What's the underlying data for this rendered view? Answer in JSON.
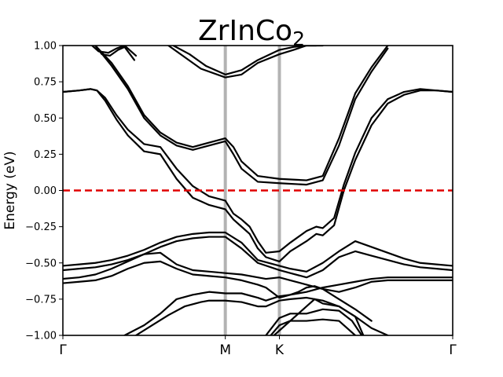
{
  "chart_data": {
    "type": "line",
    "title": {
      "main": "ZrInCo",
      "subscript": "2"
    },
    "xlabel": "",
    "ylabel": "Energy (eV)",
    "ylim": [
      -1.0,
      1.0
    ],
    "y_ticks": [
      -1.0,
      -0.75,
      -0.5,
      -0.25,
      0.0,
      0.25,
      0.5,
      0.75,
      1.0
    ],
    "y_tick_labels": [
      "−1.00",
      "−0.75",
      "−0.50",
      "−0.25",
      "0.00",
      "0.25",
      "0.50",
      "0.75",
      "1.00"
    ],
    "k_path": {
      "labels": [
        "Γ",
        "M",
        "K",
        "Γ"
      ],
      "positions": [
        0.0,
        1.0,
        1.333,
        2.4
      ]
    },
    "fermi_level": {
      "energy": 0.0,
      "color": "#e00000",
      "style": "dashed"
    },
    "colors": {
      "bands": "#000000",
      "k_lines": "#b3b3b3",
      "fermi": "#e00000"
    },
    "grid": false,
    "series": [
      {
        "x": [
          0.18,
          0.22,
          0.28,
          0.33,
          0.38,
          0.45
        ],
        "y": [
          1.0,
          0.96,
          0.95,
          0.98,
          1.0,
          0.93
        ]
      },
      {
        "x": [
          0.2,
          0.24,
          0.29,
          0.34,
          0.38,
          0.44
        ],
        "y": [
          1.0,
          0.94,
          0.93,
          0.97,
          0.99,
          0.9
        ]
      },
      {
        "x": [
          0.68,
          0.78,
          0.88,
          1.0,
          1.1,
          1.2,
          1.333,
          1.42,
          1.5,
          1.56
        ],
        "y": [
          1.0,
          0.94,
          0.86,
          0.8,
          0.83,
          0.9,
          0.97,
          0.99,
          1.0,
          1.0
        ]
      },
      {
        "x": [
          0.65,
          0.75,
          0.85,
          1.0,
          1.1,
          1.2,
          1.333,
          1.42,
          1.5,
          1.6
        ],
        "y": [
          1.0,
          0.92,
          0.84,
          0.78,
          0.8,
          0.88,
          0.94,
          0.97,
          1.0,
          1.0
        ]
      },
      {
        "x": [
          0.0,
          0.1,
          0.17,
          0.21,
          0.26,
          0.33,
          0.4,
          0.5,
          0.6,
          0.7,
          0.8,
          0.9,
          1.0,
          1.05,
          1.1,
          1.15,
          1.2,
          1.25,
          1.333,
          1.4,
          1.5,
          1.56,
          1.6,
          1.67,
          1.73,
          1.8,
          1.9,
          2.0,
          2.1,
          2.2,
          2.3,
          2.4
        ],
        "y": [
          0.68,
          0.69,
          0.7,
          0.69,
          0.64,
          0.52,
          0.42,
          0.32,
          0.3,
          0.15,
          0.03,
          -0.04,
          -0.07,
          -0.16,
          -0.2,
          -0.25,
          -0.35,
          -0.43,
          -0.42,
          -0.36,
          -0.28,
          -0.25,
          -0.26,
          -0.19,
          0.04,
          0.26,
          0.5,
          0.63,
          0.68,
          0.7,
          0.69,
          0.68
        ]
      },
      {
        "x": [
          0.0,
          0.1,
          0.17,
          0.21,
          0.26,
          0.33,
          0.4,
          0.5,
          0.6,
          0.7,
          0.8,
          0.9,
          1.0,
          1.05,
          1.1,
          1.15,
          1.2,
          1.25,
          1.333,
          1.4,
          1.5,
          1.56,
          1.6,
          1.67,
          1.73,
          1.8,
          1.9,
          2.0,
          2.1,
          2.2,
          2.3,
          2.4
        ],
        "y": [
          0.68,
          0.69,
          0.7,
          0.69,
          0.62,
          0.49,
          0.38,
          0.27,
          0.25,
          0.08,
          -0.05,
          -0.1,
          -0.13,
          -0.2,
          -0.25,
          -0.3,
          -0.4,
          -0.46,
          -0.49,
          -0.42,
          -0.35,
          -0.3,
          -0.31,
          -0.24,
          0.0,
          0.21,
          0.45,
          0.6,
          0.66,
          0.69,
          0.69,
          0.68
        ]
      },
      {
        "x": [
          0.2,
          0.3,
          0.4,
          0.5,
          0.6,
          0.7,
          0.8,
          0.9,
          1.0,
          1.05,
          1.1,
          1.2,
          1.333,
          1.5,
          1.6,
          1.7,
          1.8,
          1.9,
          2.0
        ],
        "y": [
          1.0,
          0.88,
          0.72,
          0.52,
          0.4,
          0.33,
          0.3,
          0.33,
          0.36,
          0.3,
          0.2,
          0.1,
          0.08,
          0.07,
          0.1,
          0.36,
          0.67,
          0.85,
          1.0
        ]
      },
      {
        "x": [
          0.2,
          0.3,
          0.4,
          0.5,
          0.6,
          0.7,
          0.8,
          0.9,
          1.0,
          1.05,
          1.1,
          1.2,
          1.333,
          1.5,
          1.6,
          1.7,
          1.8,
          1.9,
          2.0
        ],
        "y": [
          1.0,
          0.86,
          0.7,
          0.5,
          0.38,
          0.31,
          0.28,
          0.31,
          0.34,
          0.25,
          0.15,
          0.06,
          0.05,
          0.04,
          0.07,
          0.31,
          0.63,
          0.82,
          0.98
        ]
      },
      {
        "x": [
          0.0,
          0.1,
          0.2,
          0.3,
          0.4,
          0.5,
          0.6,
          0.7,
          0.8,
          0.9,
          1.0,
          1.1,
          1.2,
          1.333,
          1.4,
          1.5,
          1.6,
          1.7,
          1.8,
          1.9,
          2.0,
          2.1,
          2.2,
          2.3,
          2.4
        ],
        "y": [
          -0.52,
          -0.51,
          -0.5,
          -0.48,
          -0.45,
          -0.41,
          -0.36,
          -0.32,
          -0.3,
          -0.29,
          -0.29,
          -0.36,
          -0.48,
          -0.52,
          -0.54,
          -0.56,
          -0.5,
          -0.42,
          -0.35,
          -0.39,
          -0.43,
          -0.47,
          -0.5,
          -0.51,
          -0.52
        ]
      },
      {
        "x": [
          0.0,
          0.1,
          0.2,
          0.3,
          0.4,
          0.5,
          0.6,
          0.7,
          0.8,
          0.9,
          1.0,
          1.1,
          1.2,
          1.333,
          1.4,
          1.5,
          1.6,
          1.7,
          1.8,
          1.9,
          2.0,
          2.1,
          2.2,
          2.3,
          2.4
        ],
        "y": [
          -0.55,
          -0.54,
          -0.53,
          -0.51,
          -0.48,
          -0.44,
          -0.39,
          -0.35,
          -0.33,
          -0.32,
          -0.32,
          -0.4,
          -0.5,
          -0.55,
          -0.57,
          -0.6,
          -0.55,
          -0.46,
          -0.42,
          -0.45,
          -0.48,
          -0.51,
          -0.53,
          -0.54,
          -0.55
        ]
      },
      {
        "x": [
          0.0,
          0.1,
          0.2,
          0.3,
          0.4,
          0.5,
          0.6,
          0.7,
          0.8,
          0.9,
          1.0,
          1.1,
          1.2,
          1.25,
          1.333,
          1.4,
          1.5,
          1.6,
          1.7,
          1.8,
          1.9,
          2.0,
          2.1,
          2.2,
          2.3,
          2.4
        ],
        "y": [
          -0.61,
          -0.6,
          -0.58,
          -0.54,
          -0.49,
          -0.44,
          -0.43,
          -0.51,
          -0.55,
          -0.56,
          -0.57,
          -0.58,
          -0.6,
          -0.61,
          -0.6,
          -0.62,
          -0.65,
          -0.68,
          -0.7,
          -0.67,
          -0.63,
          -0.62,
          -0.62,
          -0.62,
          -0.62,
          -0.62
        ]
      },
      {
        "x": [
          0.0,
          0.1,
          0.2,
          0.3,
          0.4,
          0.5,
          0.6,
          0.7,
          0.8,
          0.9,
          1.0,
          1.1,
          1.2,
          1.25,
          1.333,
          1.4,
          1.5,
          1.6,
          1.7,
          1.8,
          1.9,
          2.0,
          2.1,
          2.2,
          2.3,
          2.4
        ],
        "y": [
          -0.64,
          -0.63,
          -0.62,
          -0.59,
          -0.54,
          -0.5,
          -0.49,
          -0.54,
          -0.58,
          -0.59,
          -0.6,
          -0.62,
          -0.65,
          -0.67,
          -0.74,
          -0.72,
          -0.7,
          -0.67,
          -0.65,
          -0.63,
          -0.61,
          -0.6,
          -0.6,
          -0.6,
          -0.6,
          -0.6
        ]
      },
      {
        "x": [
          0.38,
          0.5,
          0.6,
          0.7,
          0.8,
          0.9,
          1.0,
          1.1,
          1.2,
          1.25,
          1.333,
          1.4,
          1.45,
          1.5,
          1.55,
          1.6,
          1.7,
          1.8,
          1.9
        ],
        "y": [
          -1.0,
          -0.93,
          -0.85,
          -0.75,
          -0.72,
          -0.7,
          -0.71,
          -0.71,
          -0.74,
          -0.76,
          -0.73,
          -0.72,
          -0.7,
          -0.67,
          -0.66,
          -0.68,
          -0.75,
          -0.82,
          -0.9
        ]
      },
      {
        "x": [
          0.45,
          0.55,
          0.65,
          0.75,
          0.85,
          0.9,
          1.0,
          1.1,
          1.2,
          1.25,
          1.333,
          1.4,
          1.5,
          1.6,
          1.7,
          1.8,
          1.9,
          2.0
        ],
        "y": [
          -1.0,
          -0.93,
          -0.86,
          -0.8,
          -0.77,
          -0.76,
          -0.76,
          -0.77,
          -0.8,
          -0.8,
          -0.76,
          -0.75,
          -0.74,
          -0.76,
          -0.8,
          -0.87,
          -0.95,
          -1.0
        ]
      },
      {
        "x": [
          1.28,
          1.333,
          1.4,
          1.5,
          1.6,
          1.7,
          1.8
        ],
        "y": [
          -1.0,
          -0.93,
          -0.9,
          -0.9,
          -0.89,
          -0.9,
          -1.0
        ]
      },
      {
        "x": [
          1.25,
          1.333,
          1.4,
          1.5,
          1.6,
          1.7,
          1.78,
          1.84
        ],
        "y": [
          -1.0,
          -0.88,
          -0.85,
          -0.85,
          -0.82,
          -0.83,
          -0.9,
          -1.0
        ]
      },
      {
        "x": [
          1.3,
          1.4,
          1.5,
          1.55,
          1.6,
          1.7,
          1.8,
          1.85
        ],
        "y": [
          -1.0,
          -0.9,
          -0.8,
          -0.75,
          -0.78,
          -0.8,
          -0.87,
          -1.0
        ]
      }
    ]
  }
}
